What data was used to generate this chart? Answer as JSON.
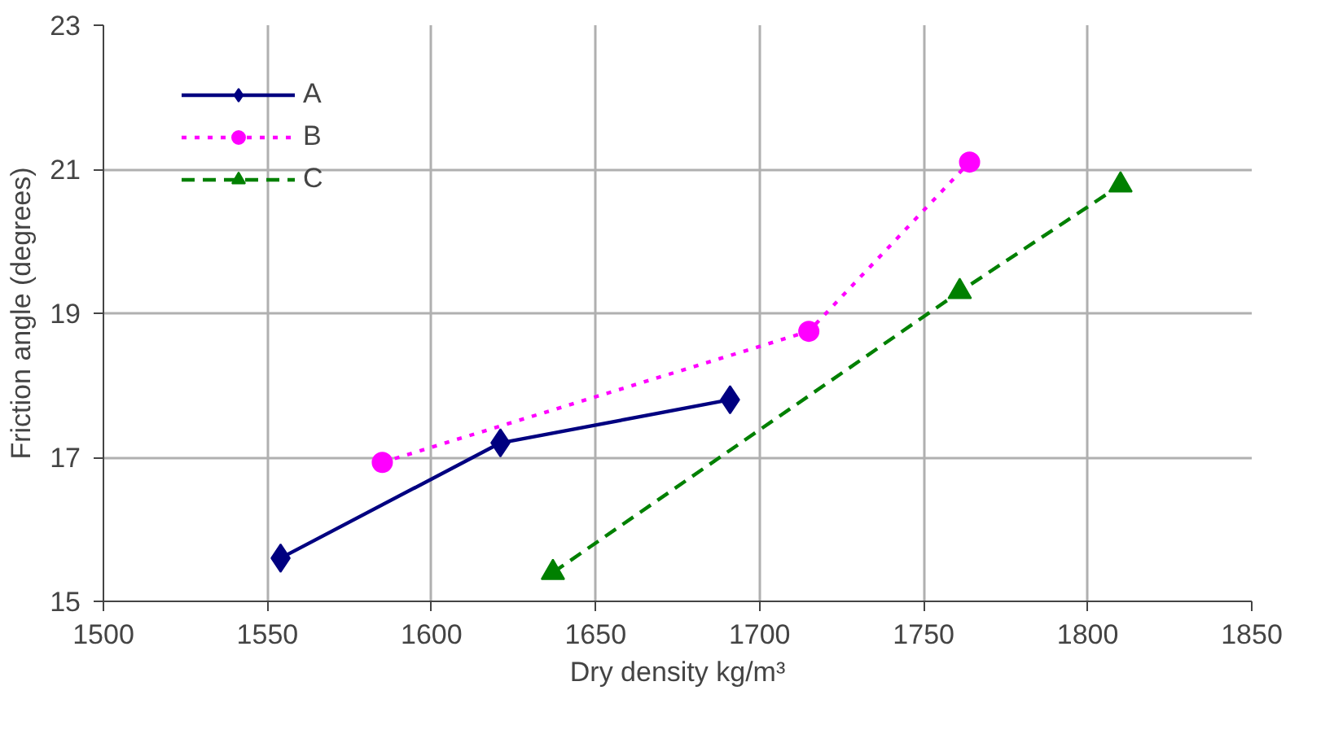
{
  "chart_data": {
    "type": "line",
    "xlabel": "Dry density kg/m³",
    "ylabel": "Friction angle (degrees)",
    "xlim": [
      1500,
      1850
    ],
    "xticks": [
      1500,
      1550,
      1600,
      1650,
      1700,
      1750,
      1800,
      1850
    ],
    "ylim": [
      15,
      23
    ],
    "yticks": [
      15,
      17,
      19,
      21,
      23
    ],
    "grid": true,
    "legend": "top left",
    "series": [
      {
        "name": "A",
        "color": "#000080",
        "marker": "diamond",
        "line_style": "solid",
        "x": [
          1554,
          1621,
          1691
        ],
        "values": [
          15.6,
          17.2,
          17.8
        ]
      },
      {
        "name": "B",
        "color": "#ff00ff",
        "marker": "circle",
        "line_style": "dotted",
        "x": [
          1585,
          1715,
          1764
        ],
        "values": [
          16.93,
          18.75,
          21.1
        ]
      },
      {
        "name": "C",
        "color": "#008000",
        "marker": "triangle",
        "line_style": "dashed",
        "x": [
          1637,
          1761,
          1810
        ],
        "values": [
          15.4,
          19.3,
          20.78
        ]
      }
    ]
  }
}
